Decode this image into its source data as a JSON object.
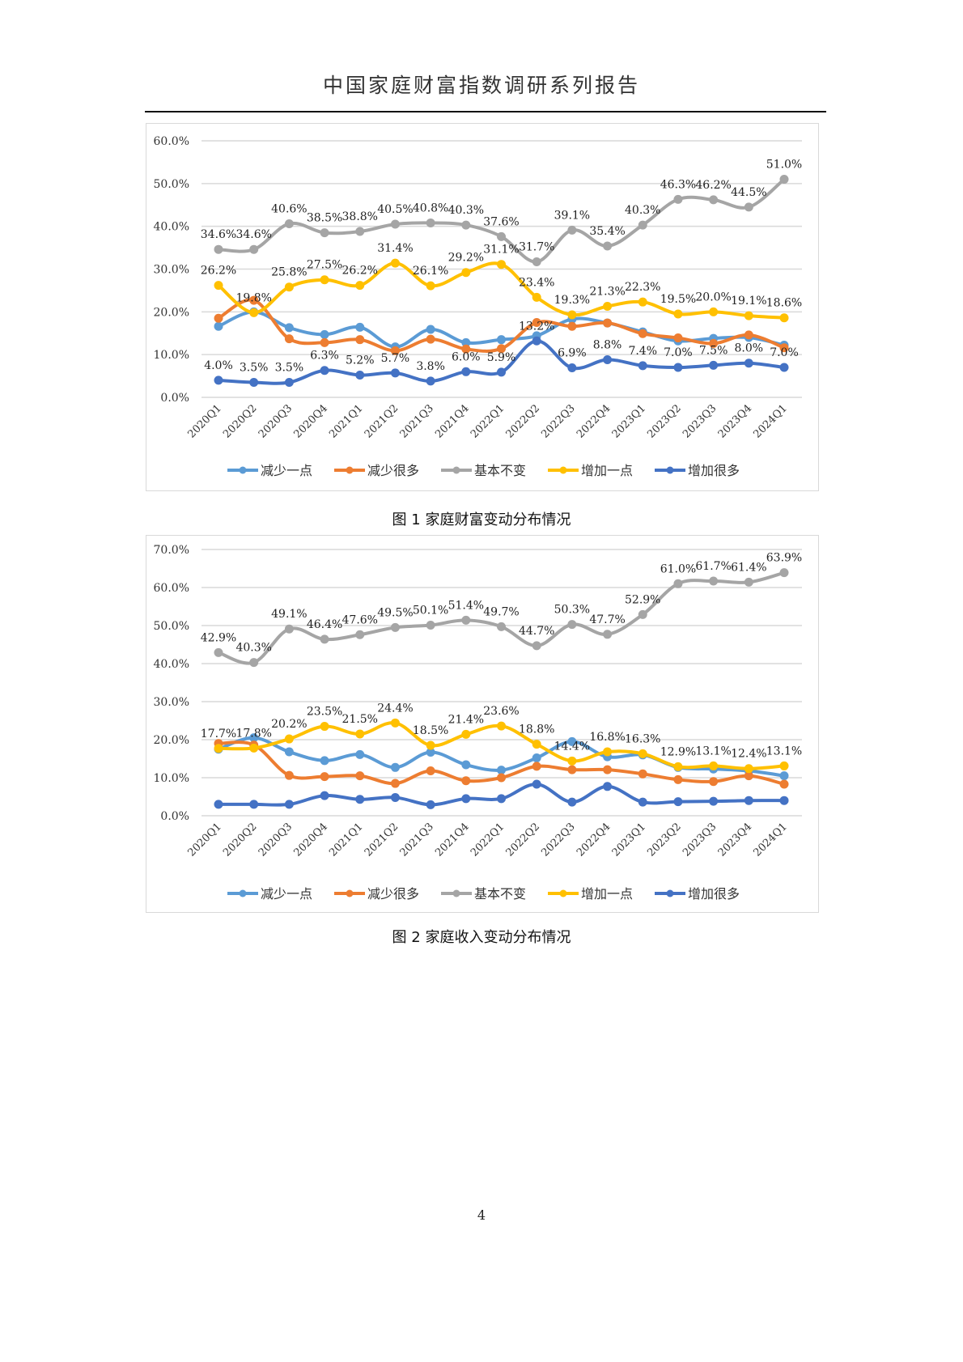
{
  "header": {
    "title": "中国家庭财富指数调研系列报告"
  },
  "colors": {
    "减少一点": "#5B9BD5",
    "减少很多": "#ED7D31",
    "基本不变": "#A5A5A5",
    "增加一点": "#FFC000",
    "增加很多": "#4472C4"
  },
  "chart_data": [
    {
      "type": "line",
      "title": "",
      "caption": "图 1 家庭财富变动分布情况",
      "xlabel": "",
      "ylabel": "",
      "ylim": [
        0,
        60
      ],
      "yticks": [
        "0.0%",
        "10.0%",
        "20.0%",
        "30.0%",
        "40.0%",
        "50.0%",
        "60.0%"
      ],
      "grid": true,
      "legend": "bottom",
      "categories": [
        "2020Q1",
        "2020Q2",
        "2020Q3",
        "2020Q4",
        "2021Q1",
        "2021Q2",
        "2021Q3",
        "2021Q4",
        "2022Q1",
        "2022Q2",
        "2022Q3",
        "2022Q4",
        "2023Q1",
        "2023Q2",
        "2023Q3",
        "2023Q4",
        "2024Q1"
      ],
      "series": [
        {
          "name": "减少一点",
          "labeled": false,
          "values": [
            16.6,
            20.0,
            16.3,
            14.7,
            16.4,
            11.8,
            15.9,
            12.8,
            13.5,
            14.4,
            18.3,
            17.4,
            15.3,
            13.2,
            13.8,
            14.0,
            12.2
          ]
        },
        {
          "name": "减少很多",
          "labeled": false,
          "values": [
            18.5,
            22.7,
            13.7,
            12.8,
            13.5,
            10.9,
            13.6,
            11.3,
            11.4,
            17.5,
            16.6,
            17.4,
            14.9,
            13.9,
            12.6,
            14.6,
            11.6
          ]
        },
        {
          "name": "基本不变",
          "labeled": true,
          "values": [
            34.6,
            34.6,
            40.6,
            38.5,
            38.8,
            40.5,
            40.8,
            40.3,
            37.6,
            31.7,
            39.1,
            35.4,
            40.3,
            46.3,
            46.2,
            44.5,
            51.0
          ]
        },
        {
          "name": "增加一点",
          "labeled": true,
          "values": [
            26.2,
            19.8,
            25.8,
            27.5,
            26.2,
            31.4,
            26.1,
            29.2,
            31.1,
            23.4,
            19.3,
            21.3,
            22.3,
            19.5,
            20.0,
            19.1,
            18.6
          ]
        },
        {
          "name": "增加很多",
          "labeled": true,
          "values": [
            4.0,
            3.5,
            3.5,
            6.3,
            5.2,
            5.7,
            3.8,
            6.0,
            5.9,
            13.2,
            6.9,
            8.8,
            7.4,
            7.0,
            7.5,
            8.0,
            7.0
          ]
        }
      ]
    },
    {
      "type": "line",
      "title": "",
      "caption": "图 2 家庭收入变动分布情况",
      "xlabel": "",
      "ylabel": "",
      "ylim": [
        0,
        70
      ],
      "yticks": [
        "0.0%",
        "10.0%",
        "20.0%",
        "30.0%",
        "40.0%",
        "50.0%",
        "60.0%",
        "70.0%"
      ],
      "grid": true,
      "legend": "bottom",
      "categories": [
        "2020Q1",
        "2020Q2",
        "2020Q3",
        "2020Q4",
        "2021Q1",
        "2021Q2",
        "2021Q3",
        "2021Q4",
        "2022Q1",
        "2022Q2",
        "2022Q3",
        "2022Q4",
        "2023Q1",
        "2023Q2",
        "2023Q3",
        "2023Q4",
        "2024Q1"
      ],
      "series": [
        {
          "name": "减少一点",
          "labeled": false,
          "values": [
            17.5,
            20.5,
            16.8,
            14.5,
            16.1,
            12.7,
            16.7,
            13.4,
            12.0,
            15.2,
            19.5,
            15.5,
            16.0,
            12.7,
            12.3,
            11.8,
            10.5
          ]
        },
        {
          "name": "减少很多",
          "labeled": false,
          "values": [
            19.0,
            18.6,
            10.6,
            10.3,
            10.5,
            8.5,
            11.8,
            9.2,
            10.0,
            13.0,
            12.1,
            12.1,
            11.0,
            9.5,
            9.0,
            10.5,
            8.3
          ]
        },
        {
          "name": "基本不变",
          "labeled": true,
          "values": [
            42.9,
            40.3,
            49.1,
            46.4,
            47.6,
            49.5,
            50.1,
            51.4,
            49.7,
            44.7,
            50.3,
            47.7,
            52.9,
            61.0,
            61.7,
            61.4,
            63.9
          ]
        },
        {
          "name": "增加一点",
          "labeled": true,
          "values": [
            17.7,
            17.8,
            20.2,
            23.5,
            21.5,
            24.4,
            18.5,
            21.4,
            23.6,
            18.8,
            14.4,
            16.8,
            16.3,
            12.9,
            13.1,
            12.4,
            13.1
          ]
        },
        {
          "name": "增加很多",
          "labeled": false,
          "values": [
            3.0,
            3.0,
            3.0,
            5.3,
            4.3,
            4.8,
            2.9,
            4.5,
            4.5,
            8.3,
            3.6,
            7.7,
            3.6,
            3.7,
            3.8,
            4.0,
            4.0
          ]
        }
      ]
    }
  ],
  "footer": {
    "page_number": "4"
  }
}
